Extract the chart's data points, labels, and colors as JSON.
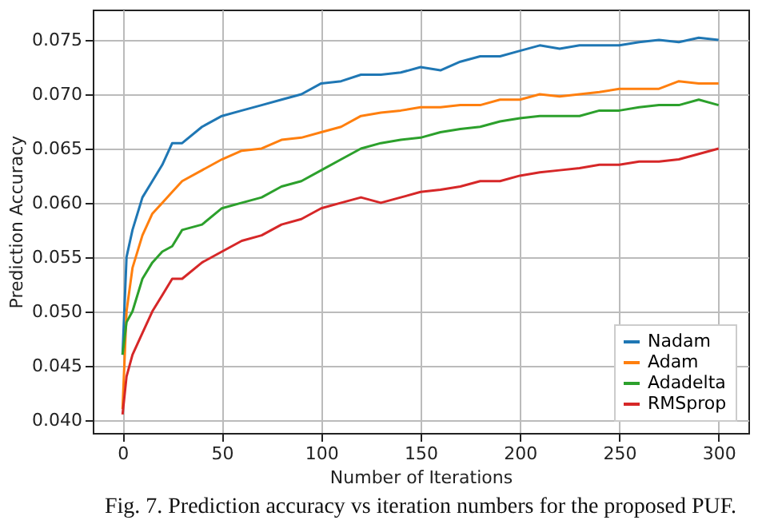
{
  "chart_data": {
    "type": "line",
    "xlabel": "Number of Iterations",
    "ylabel": "Prediction Accuracy",
    "annotations": [
      "Fig. 7. Prediction accuracy vs iteration numbers for the proposed PUF."
    ],
    "x": [
      0,
      2,
      5,
      10,
      15,
      20,
      25,
      30,
      40,
      50,
      60,
      70,
      80,
      90,
      100,
      110,
      120,
      130,
      140,
      150,
      160,
      170,
      180,
      190,
      200,
      210,
      220,
      230,
      240,
      250,
      260,
      270,
      280,
      290,
      300
    ],
    "series": [
      {
        "name": "Nadam",
        "color": "#1f77b4",
        "values": [
          0.046,
          0.055,
          0.0575,
          0.0605,
          0.062,
          0.0635,
          0.0655,
          0.0655,
          0.067,
          0.068,
          0.0685,
          0.069,
          0.0695,
          0.07,
          0.071,
          0.0712,
          0.0718,
          0.0718,
          0.072,
          0.0725,
          0.0722,
          0.073,
          0.0735,
          0.0735,
          0.074,
          0.0745,
          0.0742,
          0.0745,
          0.0745,
          0.0745,
          0.0748,
          0.075,
          0.0748,
          0.0752,
          0.075
        ]
      },
      {
        "name": "Adam",
        "color": "#ff7f0e",
        "values": [
          0.041,
          0.05,
          0.054,
          0.057,
          0.059,
          0.06,
          0.061,
          0.062,
          0.063,
          0.064,
          0.0648,
          0.065,
          0.0658,
          0.066,
          0.0665,
          0.067,
          0.068,
          0.0683,
          0.0685,
          0.0688,
          0.0688,
          0.069,
          0.069,
          0.0695,
          0.0695,
          0.07,
          0.0698,
          0.07,
          0.0702,
          0.0705,
          0.0705,
          0.0705,
          0.0712,
          0.071,
          0.071
        ]
      },
      {
        "name": "Adadelta",
        "color": "#2ca02c",
        "values": [
          0.046,
          0.049,
          0.05,
          0.053,
          0.0545,
          0.0555,
          0.056,
          0.0575,
          0.058,
          0.0595,
          0.06,
          0.0605,
          0.0615,
          0.062,
          0.063,
          0.064,
          0.065,
          0.0655,
          0.0658,
          0.066,
          0.0665,
          0.0668,
          0.067,
          0.0675,
          0.0678,
          0.068,
          0.068,
          0.068,
          0.0685,
          0.0685,
          0.0688,
          0.069,
          0.069,
          0.0695,
          0.069
        ]
      },
      {
        "name": "RMSprop",
        "color": "#d62728",
        "values": [
          0.0405,
          0.044,
          0.046,
          0.048,
          0.05,
          0.0515,
          0.053,
          0.053,
          0.0545,
          0.0555,
          0.0565,
          0.057,
          0.058,
          0.0585,
          0.0595,
          0.06,
          0.0605,
          0.06,
          0.0605,
          0.061,
          0.0612,
          0.0615,
          0.062,
          0.062,
          0.0625,
          0.0628,
          0.063,
          0.0632,
          0.0635,
          0.0635,
          0.0638,
          0.0638,
          0.064,
          0.0645,
          0.065
        ]
      }
    ],
    "xlim": [
      -15,
      315
    ],
    "xticks": [
      0,
      50,
      100,
      150,
      200,
      250,
      300
    ],
    "ylim": [
      0.0388,
      0.0778
    ],
    "yticks": [
      {
        "value": 0.04,
        "label": "0.040"
      },
      0.045,
      {
        "value": 0.05,
        "label": "0.050"
      },
      0.055,
      {
        "value": 0.06,
        "label": "0.060"
      },
      0.065,
      {
        "value": 0.07,
        "label": "0.070"
      },
      0.075
    ],
    "grid": true,
    "legend": "bottom right",
    "marker": "none",
    "line_style": "solid"
  }
}
